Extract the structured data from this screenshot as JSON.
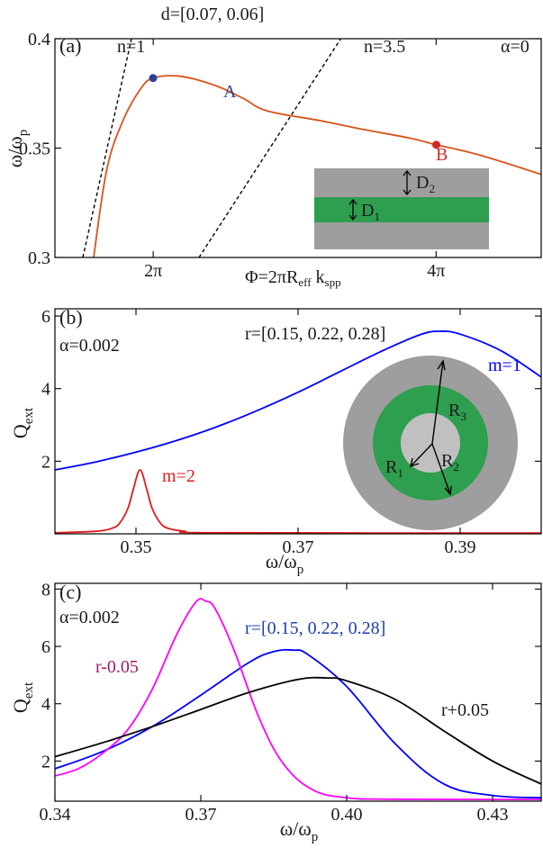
{
  "chart_data": [
    {
      "type": "line",
      "panel_label": "(a)",
      "title": "d=[0.07, 0.06]",
      "alpha_label": "α=0",
      "xlabel": "Φ=2πR",
      "xlabel_sub": "eff",
      "xlabel_tail": " k",
      "xlabel_tail_sub": "spp",
      "ylabel": "ω/ω",
      "ylabel_sub": "p",
      "xlim": [
        4.1,
        14.9
      ],
      "ylim": [
        0.3,
        0.4
      ],
      "xticks": [
        {
          "value": 6.2832,
          "label": "2π"
        },
        {
          "value": 12.5664,
          "label": "4π"
        }
      ],
      "yticks": [
        {
          "value": 0.3,
          "label": "0.3"
        },
        {
          "value": 0.35,
          "label": "0.35"
        },
        {
          "value": 0.4,
          "label": "0.4"
        }
      ],
      "series": [
        {
          "name": "",
          "color": "#d95319",
          "style": "solid",
          "x": [
            4.96,
            5.25,
            5.6,
            6.0,
            6.28,
            6.8,
            7.3,
            7.8,
            8.3,
            8.82,
            10.0,
            11.0,
            12.0,
            12.57,
            13.5,
            14.9
          ],
          "y": [
            0.3,
            0.34,
            0.362,
            0.377,
            0.382,
            0.383,
            0.381,
            0.3775,
            0.3725,
            0.367,
            0.3625,
            0.3583,
            0.3545,
            0.3515,
            0.347,
            0.338
          ]
        },
        {
          "name": "n=1",
          "color": "#000000",
          "style": "dashed",
          "x": [
            4.72,
            5.8
          ],
          "y": [
            0.3,
            0.4
          ]
        },
        {
          "name": "n=3.5",
          "color": "#000000",
          "style": "dashed",
          "x": [
            7.3,
            10.45
          ],
          "y": [
            0.3,
            0.4
          ]
        }
      ],
      "points": [
        {
          "label": "A",
          "x": 6.28,
          "y": 0.382,
          "color": "#2a3f9a"
        },
        {
          "label": "B",
          "x": 12.57,
          "y": 0.3515,
          "color": "#d62728"
        }
      ],
      "line_labels": [
        {
          "text": "n=1"
        },
        {
          "text": "n=3.5"
        }
      ],
      "inset": {
        "d2_label": "D",
        "d2_sub": "2",
        "d1_label": "D",
        "d1_sub": "1",
        "outer_color": "#9e9e9e",
        "core_color": "#2e9e4f"
      }
    },
    {
      "type": "line",
      "panel_label": "(b)",
      "title": "r=[0.15, 0.22, 0.28]",
      "alpha_label": "α=0.002",
      "xlabel": "ω/ω",
      "xlabel_sub": "p",
      "ylabel": "Q",
      "ylabel_sub": "ext",
      "xlim": [
        0.34,
        0.4
      ],
      "ylim": [
        0,
        6.2
      ],
      "xticks": [
        {
          "value": 0.35,
          "label": "0.35"
        },
        {
          "value": 0.37,
          "label": "0.37"
        },
        {
          "value": 0.39,
          "label": "0.39"
        }
      ],
      "yticks": [
        {
          "value": 2,
          "label": "2"
        },
        {
          "value": 4,
          "label": "4"
        },
        {
          "value": 6,
          "label": "6"
        }
      ],
      "series": [
        {
          "name": "m=1",
          "color": "#0000ff",
          "x": [
            0.34,
            0.345,
            0.35,
            0.355,
            0.36,
            0.365,
            0.37,
            0.375,
            0.38,
            0.385,
            0.3875,
            0.39,
            0.395,
            0.4
          ],
          "y": [
            1.76,
            1.98,
            2.25,
            2.57,
            2.95,
            3.4,
            3.9,
            4.45,
            5.0,
            5.48,
            5.58,
            5.5,
            5.05,
            4.32
          ]
        },
        {
          "name": "m=2",
          "color": "#e31a1c",
          "x": [
            0.34,
            0.345,
            0.347,
            0.348,
            0.349,
            0.3497,
            0.3505,
            0.3513,
            0.352,
            0.353,
            0.354,
            0.356,
            0.36,
            0.4
          ],
          "y": [
            0.03,
            0.07,
            0.15,
            0.3,
            0.7,
            1.25,
            1.76,
            1.25,
            0.7,
            0.3,
            0.15,
            0.07,
            0.03,
            0.02
          ]
        }
      ],
      "inset": {
        "r1_label": "R",
        "r1_sub": "1",
        "r2_label": "R",
        "r2_sub": "2",
        "r3_label": "R",
        "r3_sub": "3",
        "outer_color": "#9e9e9e",
        "ring_color": "#2e9e4f",
        "core_color": "#c0c0c0"
      }
    },
    {
      "type": "line",
      "panel_label": "(c)",
      "alpha_label": "α=0.002",
      "xlabel": "ω/ω",
      "xlabel_sub": "p",
      "ylabel": "Q",
      "ylabel_sub": "ext",
      "xlim": [
        0.34,
        0.44
      ],
      "ylim": [
        0.6,
        8.2
      ],
      "xticks": [
        {
          "value": 0.34,
          "label": "0.34"
        },
        {
          "value": 0.37,
          "label": "0.37"
        },
        {
          "value": 0.4,
          "label": "0.40"
        },
        {
          "value": 0.43,
          "label": "0.43"
        }
      ],
      "yticks": [
        {
          "value": 2,
          "label": "2"
        },
        {
          "value": 4,
          "label": "4"
        },
        {
          "value": 6,
          "label": "6"
        },
        {
          "value": 8,
          "label": "8"
        }
      ],
      "series": [
        {
          "name": "r=[0.15, 0.22, 0.28]",
          "color": "#0000ff",
          "x": [
            0.34,
            0.35,
            0.36,
            0.37,
            0.38,
            0.385,
            0.389,
            0.392,
            0.4,
            0.41,
            0.42,
            0.43,
            0.44
          ],
          "y": [
            1.73,
            2.35,
            3.2,
            4.3,
            5.45,
            5.82,
            5.87,
            5.72,
            4.6,
            2.6,
            1.2,
            0.8,
            0.72
          ]
        },
        {
          "name": "r-0.05",
          "color": "#ff00ff",
          "x": [
            0.34,
            0.345,
            0.35,
            0.355,
            0.36,
            0.365,
            0.369,
            0.371,
            0.373,
            0.377,
            0.382,
            0.387,
            0.393,
            0.4,
            0.41,
            0.44
          ],
          "y": [
            1.48,
            1.75,
            2.3,
            3.1,
            4.5,
            6.4,
            7.55,
            7.58,
            7.3,
            5.8,
            3.5,
            1.9,
            1.0,
            0.72,
            0.67,
            0.66
          ]
        },
        {
          "name": "r+0.05",
          "color": "#000000",
          "x": [
            0.34,
            0.35,
            0.36,
            0.37,
            0.38,
            0.39,
            0.396,
            0.4,
            0.41,
            0.42,
            0.43,
            0.44
          ],
          "y": [
            2.15,
            2.65,
            3.2,
            3.8,
            4.4,
            4.85,
            4.9,
            4.8,
            4.15,
            3.05,
            2.0,
            1.2
          ]
        }
      ]
    }
  ]
}
